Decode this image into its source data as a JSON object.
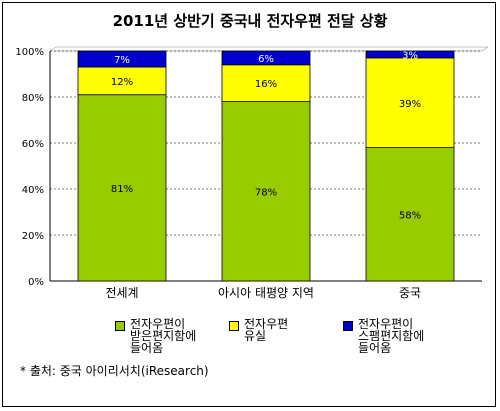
{
  "chart_data": {
    "type": "bar",
    "stacked": true,
    "percent": true,
    "title": "2011년 상반기 중국내 전자우편 전달 상황",
    "categories": [
      "전세계",
      "아시아 태평양 지역",
      "중국"
    ],
    "series": [
      {
        "name": "전자우편이\n받은편지함에\n들어옴",
        "color": "#99cc00",
        "values": [
          81,
          78,
          58
        ]
      },
      {
        "name": "전자우편\n유실",
        "color": "#ffff00",
        "values": [
          12,
          16,
          39
        ]
      },
      {
        "name": "전자우편이\n스팸편지함에\n들어옴",
        "color": "#0000cc",
        "values": [
          7,
          6,
          3
        ]
      }
    ],
    "yticks": [
      "0%",
      "20%",
      "40%",
      "60%",
      "80%",
      "100%"
    ],
    "ylim": [
      0,
      100
    ],
    "grid": true,
    "legend": "bottom"
  },
  "source": "* 출처: 중국 아이리서치(iResearch)"
}
